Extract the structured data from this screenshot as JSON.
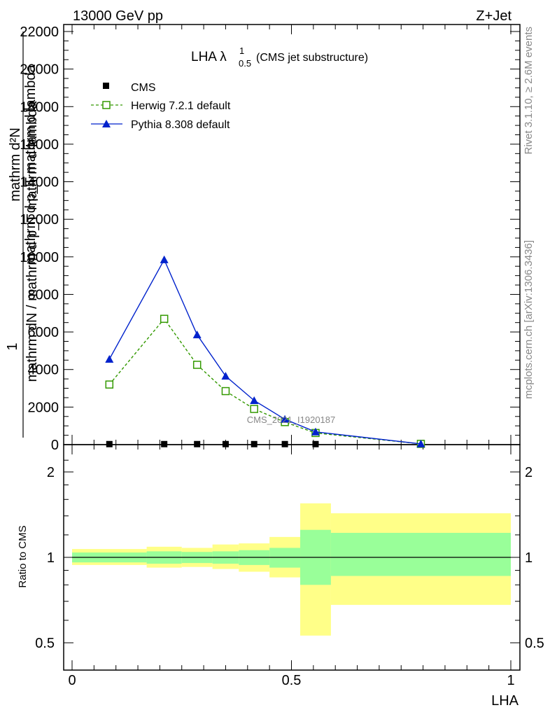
{
  "header": {
    "left": "13000 GeV pp",
    "right": "Z+Jet"
  },
  "side_labels": {
    "rivet": "Rivet 3.1.10, ≥ 2.6M events",
    "mcplots": "mcplots.cern.ch [arXiv:1306.3436]"
  },
  "chart_data": [
    {
      "type": "line",
      "title_main": "LHA λ",
      "title_sup": "1",
      "title_sub": "0.5",
      "title_note": "(CMS jet substructure)",
      "ylabel_lines": [
        "1",
        "mathrm dN / mathrm d p_T mathrm d lambda",
        "mathrm dN / mathrm d p_T mathrm d lambda",
        "mathrm dN / mathrm d lambda"
      ],
      "ylabel_top": "mathrm d²N",
      "ylabel_frac": "mathrm d p_T mathrm d lambda",
      "ylabel_one": "1",
      "ylabel_bottom": "mathrm dN / mathrm d p_T mathrm d lambda",
      "ylim": [
        0,
        22000
      ],
      "xlim": [
        0,
        1
      ],
      "y_ticks": [
        0,
        2000,
        4000,
        6000,
        8000,
        10000,
        12000,
        14000,
        16000,
        18000,
        20000,
        22000
      ],
      "y_tick_labels": [
        "0",
        "2000",
        "4000",
        "6000",
        "8000",
        "10000",
        "12000",
        "14000",
        "16000",
        "18000",
        "20000",
        "22000"
      ],
      "watermark": "CMS_2021_I1920187",
      "legend_position": "top-left",
      "series": [
        {
          "name": "CMS",
          "style": "square-marker",
          "color": "#000000",
          "x": [
            0.085,
            0.21,
            0.285,
            0.35,
            0.415,
            0.485,
            0.555,
            0.795
          ],
          "y": [
            28,
            28,
            28,
            28,
            28,
            28,
            28,
            10
          ]
        },
        {
          "name": "Herwig 7.2.1 default",
          "style": "dashed-open-square",
          "color": "#339900",
          "x": [
            0.085,
            0.21,
            0.285,
            0.35,
            0.415,
            0.485,
            0.555,
            0.795
          ],
          "y": [
            3200,
            6700,
            4250,
            2850,
            1900,
            1200,
            620,
            40
          ]
        },
        {
          "name": "Pythia 8.308 default",
          "style": "solid-triangle",
          "color": "#0022cc",
          "x": [
            0.085,
            0.21,
            0.285,
            0.35,
            0.415,
            0.485,
            0.555,
            0.795
          ],
          "y": [
            4550,
            9850,
            5850,
            3650,
            2350,
            1350,
            680,
            40
          ]
        }
      ]
    },
    {
      "type": "area",
      "ylabel": "Ratio to CMS",
      "xlabel": "LHA",
      "ylim": [
        0.4,
        2.4
      ],
      "xlim": [
        0,
        1
      ],
      "y_tick_labels": [
        "0.5",
        "1",
        "2"
      ],
      "y_tick_values": [
        0.5,
        1,
        2
      ],
      "x_tick_labels": [
        "0",
        "0.5",
        "1"
      ],
      "x_tick_values": [
        0,
        0.5,
        1
      ],
      "colors": {
        "stat": "#99ff99",
        "syst": "#ffff88"
      },
      "bins": [
        {
          "lo": 0.0,
          "hi": 0.17,
          "in_lo": 0.96,
          "in_hi": 1.04,
          "out_lo": 0.94,
          "out_hi": 1.07
        },
        {
          "lo": 0.17,
          "hi": 0.25,
          "in_lo": 0.95,
          "in_hi": 1.05,
          "out_lo": 0.92,
          "out_hi": 1.09
        },
        {
          "lo": 0.25,
          "hi": 0.32,
          "in_lo": 0.955,
          "in_hi": 1.045,
          "out_lo": 0.925,
          "out_hi": 1.08
        },
        {
          "lo": 0.32,
          "hi": 0.38,
          "in_lo": 0.95,
          "in_hi": 1.05,
          "out_lo": 0.91,
          "out_hi": 1.11
        },
        {
          "lo": 0.38,
          "hi": 0.45,
          "in_lo": 0.94,
          "in_hi": 1.06,
          "out_lo": 0.89,
          "out_hi": 1.12
        },
        {
          "lo": 0.45,
          "hi": 0.52,
          "in_lo": 0.92,
          "in_hi": 1.08,
          "out_lo": 0.85,
          "out_hi": 1.18
        },
        {
          "lo": 0.52,
          "hi": 0.59,
          "in_lo": 0.8,
          "in_hi": 1.25,
          "out_lo": 0.53,
          "out_hi": 1.55
        },
        {
          "lo": 0.59,
          "hi": 1.0,
          "in_lo": 0.86,
          "in_hi": 1.22,
          "out_lo": 0.68,
          "out_hi": 1.43
        }
      ]
    }
  ]
}
